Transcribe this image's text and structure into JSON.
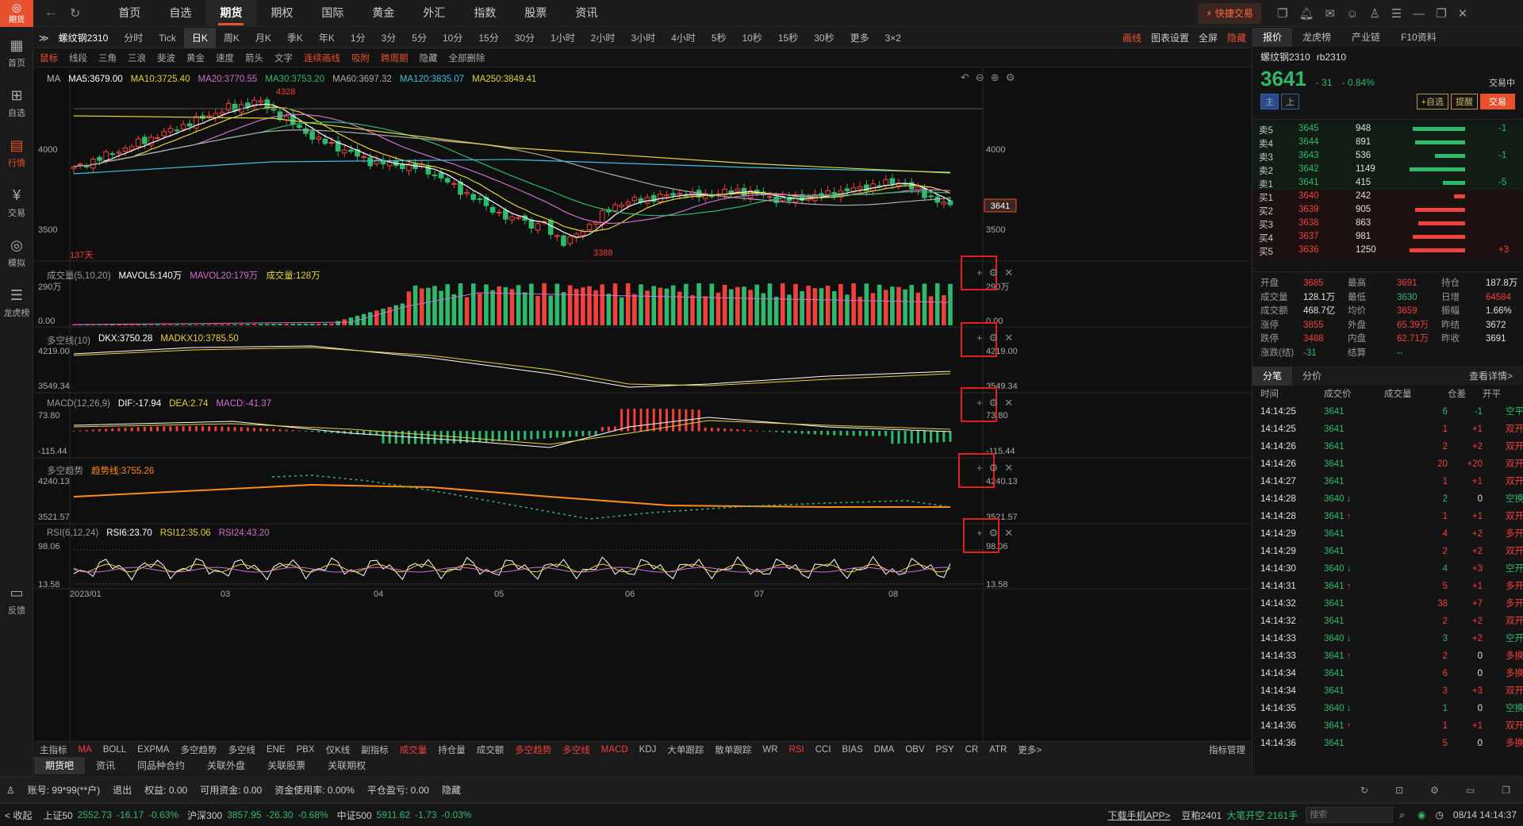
{
  "app": {
    "logo_text": "期货",
    "nav": [
      "首页",
      "自选",
      "期货",
      "期权",
      "国际",
      "黄金",
      "外汇",
      "指数",
      "股票",
      "资讯"
    ],
    "active_nav": "期货",
    "quick_trade": "快捷交易"
  },
  "leftbar": [
    {
      "icon": "grid-icon",
      "label": "首页"
    },
    {
      "icon": "plus-icon",
      "label": "自选"
    },
    {
      "icon": "chart-icon",
      "label": "行情"
    },
    {
      "icon": "yen-icon",
      "label": "交易"
    },
    {
      "icon": "gamepad-icon",
      "label": "模拟"
    },
    {
      "icon": "database-icon",
      "label": "龙虎榜"
    },
    {
      "icon": "chat-icon",
      "label": "反馈"
    }
  ],
  "periodbar": {
    "symbol": "螺纹钢2310",
    "periods": [
      "分时",
      "Tick",
      "日K",
      "周K",
      "月K",
      "季K",
      "年K",
      "1分",
      "3分",
      "5分",
      "10分",
      "15分",
      "30分",
      "1小时",
      "2小时",
      "3小时",
      "4小时",
      "5秒",
      "10秒",
      "15秒",
      "30秒",
      "更多",
      "3×2"
    ],
    "active": "日K",
    "right": [
      "画线",
      "图表设置",
      "全屏",
      "隐藏"
    ]
  },
  "drawbar": [
    "鼠标",
    "线段",
    "三角",
    "三浪",
    "斐波",
    "黄金",
    "速度",
    "箭头",
    "文字",
    "连续画线",
    "吸附",
    "跨周期",
    "隐藏",
    "全部删除"
  ],
  "legends": {
    "ma": [
      {
        "t": "MA",
        "c": "#bbbbbb"
      },
      {
        "t": "MA5:3679.00",
        "c": "#ffffff"
      },
      {
        "t": "MA10:3725.40",
        "c": "#e6d33a"
      },
      {
        "t": "MA20:3770.55",
        "c": "#d070d0"
      },
      {
        "t": "MA30:3753.20",
        "c": "#2fb96c"
      },
      {
        "t": "MA60:3697.32",
        "c": "#aaaaaa"
      },
      {
        "t": "MA120:3835.07",
        "c": "#3cc0e0"
      },
      {
        "t": "MA250:3849.41",
        "c": "#e6d33a"
      }
    ],
    "vol": [
      {
        "t": "成交量(5,10,20)",
        "c": "#999999"
      },
      {
        "t": "MAVOL5:140万",
        "c": "#ffffff"
      },
      {
        "t": "MAVOL20:179万",
        "c": "#d070d0"
      },
      {
        "t": "成交量:128万",
        "c": "#e6d33a"
      }
    ],
    "dkx": [
      {
        "t": "多空线(10)",
        "c": "#999999"
      },
      {
        "t": "DKX:3750.28",
        "c": "#ffffff"
      },
      {
        "t": "MADKX10:3785.50",
        "c": "#e6d33a"
      }
    ],
    "macd": [
      {
        "t": "MACD(12,26,9)",
        "c": "#999999"
      },
      {
        "t": "DIF:-17.94",
        "c": "#ffffff"
      },
      {
        "t": "DEA:2.74",
        "c": "#e6d33a"
      },
      {
        "t": "MACD:-41.37",
        "c": "#d070d0"
      }
    ],
    "trend": [
      {
        "t": "多空趋势",
        "c": "#999999"
      },
      {
        "t": "趋势线:3755.26",
        "c": "#ff8c1a"
      }
    ],
    "rsi": [
      {
        "t": "RSI(6,12,24)",
        "c": "#999999"
      },
      {
        "t": "RSI6:23.70",
        "c": "#ffffff"
      },
      {
        "t": "RSI12:35.06",
        "c": "#e6d33a"
      },
      {
        "t": "RSI24:43.20",
        "c": "#d070d0"
      }
    ]
  },
  "axis": {
    "price": [
      "4000",
      "3500"
    ],
    "vol": [
      "290万",
      "0.00"
    ],
    "dkx": [
      "4219.00",
      "3549.34"
    ],
    "macd": [
      "73.80",
      "-115.44"
    ],
    "trend": [
      "4240.13",
      "3521.57"
    ],
    "rsi": [
      "98.06",
      "13.58"
    ],
    "dates": [
      "2023/01",
      "03",
      "04",
      "05",
      "06",
      "07",
      "08"
    ],
    "high_label": "4328",
    "low_label": "3388",
    "days": "137天",
    "last_price": "3641"
  },
  "chart_data": {
    "type": "candlestick",
    "title": "螺纹钢2310",
    "high": 4328,
    "low": 3388,
    "last": 3641,
    "ylim": [
      3388,
      4328
    ],
    "x_ticks": [
      "2023/01",
      "03",
      "04",
      "05",
      "06",
      "07",
      "08"
    ]
  },
  "indicators": [
    "主指标",
    "MA",
    "BOLL",
    "EXPMA",
    "多空趋势",
    "多空线",
    "ENE",
    "PBX",
    "仅K线",
    "副指标",
    "成交量",
    "持仓量",
    "成交额",
    "多空趋势",
    "多空线",
    "MACD",
    "KDJ",
    "大单跟踪",
    "散单跟踪",
    "WR",
    "RSI",
    "CCI",
    "BIAS",
    "DMA",
    "OBV",
    "PSY",
    "CR",
    "ATR",
    "更多>",
    "指标管理"
  ],
  "bottom_tabs": [
    "期货吧",
    "资讯",
    "同品种合约",
    "关联外盘",
    "关联股票",
    "关联期权"
  ],
  "account": {
    "items": [
      "账号: 99*99(**户)",
      "退出",
      "权益: 0.00",
      "可用资金: 0.00",
      "资金使用率: 0.00%",
      "平仓盈亏: 0.00",
      "隐藏"
    ]
  },
  "status": {
    "collapse": "< 收起",
    "indices": [
      {
        "n": "上证50",
        "v": "2552.73",
        "c": "-16.17",
        "p": "-0.63%"
      },
      {
        "n": "沪深300",
        "v": "3857.95",
        "c": "-26.30",
        "p": "-0.68%"
      },
      {
        "n": "中证500",
        "v": "5911.62",
        "c": "-1.73",
        "p": "-0.03%"
      }
    ],
    "download": "下载手机APP>",
    "ticker": "豆粕2401",
    "big": "大笔开空 2161手",
    "search_placeholder": "搜索",
    "datetime": "08/14 14:14:37"
  },
  "right": {
    "tabs": [
      "报价",
      "龙虎榜",
      "产业链",
      "F10资料"
    ],
    "name": "螺纹钢2310",
    "code": "rb2310",
    "price": "3641",
    "change": "- 31",
    "pct": "- 0.84%",
    "state": "交易中",
    "btns": [
      "主",
      "上",
      "+自选",
      "提醒",
      "交易"
    ],
    "asks": [
      [
        "卖5",
        "3645",
        "948",
        "-1",
        0.95
      ],
      [
        "卖4",
        "3644",
        "891",
        "",
        0.9
      ],
      [
        "卖3",
        "3643",
        "536",
        "-1",
        0.55
      ],
      [
        "卖2",
        "3642",
        "1149",
        "",
        1.0
      ],
      [
        "卖1",
        "3641",
        "415",
        "-5",
        0.4
      ]
    ],
    "bids": [
      [
        "买1",
        "3640",
        "242",
        "",
        0.2
      ],
      [
        "买2",
        "3639",
        "905",
        "",
        0.9
      ],
      [
        "买3",
        "3638",
        "863",
        "",
        0.85
      ],
      [
        "买4",
        "3637",
        "981",
        "",
        0.95
      ],
      [
        "买5",
        "3636",
        "1250",
        "+3",
        1.0
      ]
    ],
    "stats": [
      [
        "开盘",
        "3685",
        "最高",
        "3691",
        "持仓",
        "187.8万"
      ],
      [
        "成交量",
        "128.1万",
        "最低",
        "3630",
        "日增",
        "64584"
      ],
      [
        "成交额",
        "468.7亿",
        "均价",
        "3659",
        "振幅",
        "1.66%"
      ],
      [
        "涨停",
        "3855",
        "外盘",
        "65.39万",
        "昨结",
        "3672"
      ],
      [
        "跌停",
        "3488",
        "内盘",
        "62.71万",
        "昨收",
        "3691"
      ],
      [
        "涨跌(结)",
        "-31",
        "结算",
        "--",
        "",
        ""
      ]
    ],
    "trade_tabs": [
      "分笔",
      "分价"
    ],
    "detail": "查看详情>",
    "tick_head": [
      "时间",
      "成交价",
      "成交量",
      "仓差",
      "开平"
    ],
    "ticks": [
      [
        "14:14:25",
        "3641",
        "",
        "6",
        "-1",
        "空平"
      ],
      [
        "14:14:25",
        "3641",
        "",
        "1",
        "+1",
        "双开"
      ],
      [
        "14:14:26",
        "3641",
        "",
        "2",
        "+2",
        "双开"
      ],
      [
        "14:14:26",
        "3641",
        "",
        "20",
        "+20",
        "双开"
      ],
      [
        "14:14:27",
        "3641",
        "",
        "1",
        "+1",
        "双开"
      ],
      [
        "14:14:28",
        "3640",
        "↓",
        "2",
        "0",
        "空换"
      ],
      [
        "14:14:28",
        "3641",
        "↑",
        "1",
        "+1",
        "双开"
      ],
      [
        "14:14:29",
        "3641",
        "",
        "4",
        "+2",
        "多开"
      ],
      [
        "14:14:29",
        "3641",
        "",
        "2",
        "+2",
        "双开"
      ],
      [
        "14:14:30",
        "3640",
        "↓",
        "4",
        "+3",
        "空开"
      ],
      [
        "14:14:31",
        "3641",
        "↑",
        "5",
        "+1",
        "多开"
      ],
      [
        "14:14:32",
        "3641",
        "",
        "38",
        "+7",
        "多开"
      ],
      [
        "14:14:32",
        "3641",
        "",
        "2",
        "+2",
        "双开"
      ],
      [
        "14:14:33",
        "3640",
        "↓",
        "3",
        "+2",
        "空开"
      ],
      [
        "14:14:33",
        "3641",
        "↑",
        "2",
        "0",
        "多换"
      ],
      [
        "14:14:34",
        "3641",
        "",
        "6",
        "0",
        "多换"
      ],
      [
        "14:14:34",
        "3641",
        "",
        "3",
        "+3",
        "双开"
      ],
      [
        "14:14:35",
        "3640",
        "↓",
        "1",
        "0",
        "空换"
      ],
      [
        "14:14:36",
        "3641",
        "↑",
        "1",
        "+1",
        "双开"
      ],
      [
        "14:14:36",
        "3641",
        "",
        "5",
        "0",
        "多换"
      ]
    ]
  }
}
